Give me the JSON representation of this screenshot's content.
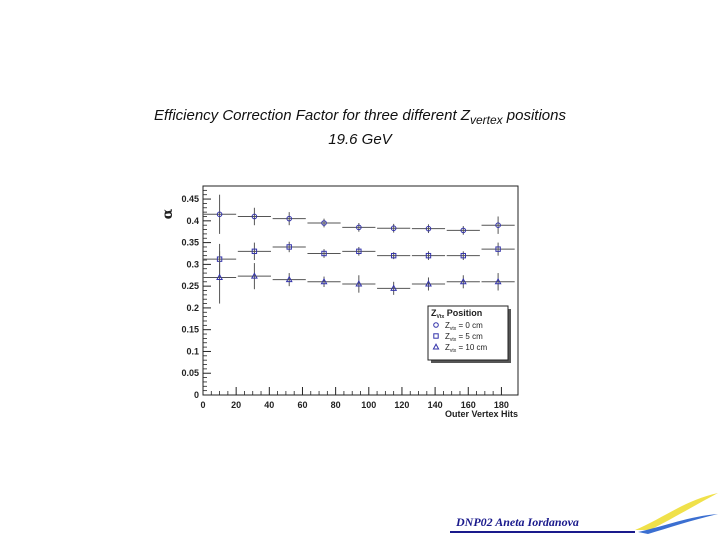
{
  "chart_data": {
    "type": "scatter",
    "title_main": "Efficiency Correction Factor for three different Z",
    "title_sub": "vertex",
    "title_end": " positions",
    "subtitle": "19.6 GeV",
    "ylabel": "α",
    "xlabel": "Outer Vertex Hits",
    "xlim": [
      0,
      190
    ],
    "ylim": [
      0,
      0.48
    ],
    "x_ticks": [
      0,
      20,
      40,
      60,
      80,
      100,
      120,
      140,
      160,
      180
    ],
    "y_ticks": [
      0,
      0.05,
      0.1,
      0.15,
      0.2,
      0.25,
      0.3,
      0.35,
      0.4,
      0.45
    ],
    "y_tick_labels": [
      "0",
      "0.05",
      "0.1",
      "0.15",
      "0.2",
      "0.25",
      "0.3",
      "0.35",
      "0.4",
      "0.45"
    ],
    "legend": {
      "title": "Z",
      "title_sub": "Vtx",
      "title_end": " Position",
      "placement": "bottom-right",
      "entries": [
        {
          "prefix": "Z",
          "sub": "vtx",
          "suffix": " = 0 cm"
        },
        {
          "prefix": "Z",
          "sub": "vtx",
          "suffix": " = 5 cm"
        },
        {
          "prefix": "Z",
          "sub": "vtx",
          "suffix": " = 10 cm"
        }
      ]
    },
    "series": [
      {
        "marker": "circle",
        "x": [
          10,
          31,
          52,
          73,
          94,
          115,
          136,
          157,
          178
        ],
        "y": [
          0.415,
          0.41,
          0.405,
          0.395,
          0.385,
          0.383,
          0.382,
          0.378,
          0.39
        ],
        "xerr": 10,
        "yerr": [
          0.045,
          0.02,
          0.015,
          0.01,
          0.01,
          0.01,
          0.01,
          0.01,
          0.02
        ]
      },
      {
        "marker": "square",
        "x": [
          10,
          31,
          52,
          73,
          94,
          115,
          136,
          157,
          178
        ],
        "y": [
          0.312,
          0.33,
          0.34,
          0.325,
          0.33,
          0.32,
          0.32,
          0.32,
          0.335
        ],
        "xerr": 10,
        "yerr": [
          0.035,
          0.02,
          0.012,
          0.01,
          0.01,
          0.008,
          0.01,
          0.01,
          0.015
        ]
      },
      {
        "marker": "triangle",
        "x": [
          10,
          31,
          52,
          73,
          94,
          115,
          136,
          157,
          178
        ],
        "y": [
          0.27,
          0.273,
          0.265,
          0.26,
          0.255,
          0.245,
          0.255,
          0.26,
          0.26
        ],
        "xerr": 10,
        "yerr": [
          0.06,
          0.03,
          0.015,
          0.012,
          0.02,
          0.015,
          0.015,
          0.015,
          0.02
        ]
      }
    ],
    "marker_color": "#3333aa",
    "errorbar_color": "#555555"
  },
  "footer": "DNP02  Aneta Iordanova",
  "footer_color": "#1a1a8c",
  "swoosh_colors": [
    "#f0e14a",
    "#3b6fd1"
  ]
}
